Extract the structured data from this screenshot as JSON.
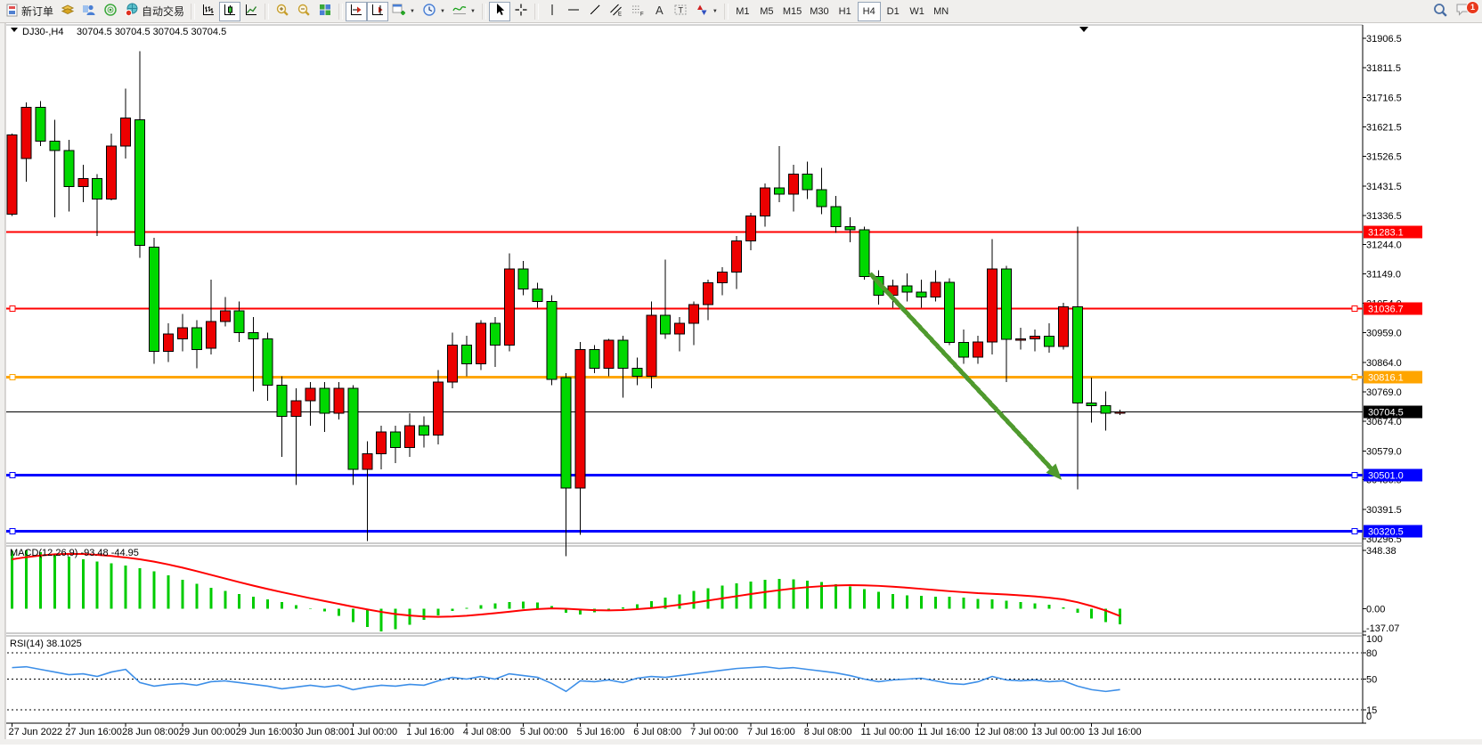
{
  "toolbar": {
    "new_order": "新订单",
    "auto_trading": "自动交易",
    "timeframes": [
      "M1",
      "M5",
      "M15",
      "M30",
      "H1",
      "H4",
      "D1",
      "W1",
      "MN"
    ],
    "active_timeframe": "H4",
    "notification_badge": "1"
  },
  "symbol_bar": {
    "title": "DJ30-,H4",
    "ohlc": "30704.5 30704.5 30704.5 30704.5"
  },
  "chart_data": {
    "type": "candlestick",
    "symbol": "DJ30-",
    "timeframe": "H4",
    "colors": {
      "up": "#ec0000",
      "down": "#00d800",
      "wick": "#000000",
      "macd_hist": "#00cc00",
      "macd_signal": "#ff0000",
      "rsi": "#3d8fe8",
      "arrow": "#4f9a2e",
      "red_line": "#ff0000",
      "orange_line": "#ffa500",
      "blue_line": "#0000ff"
    },
    "y_axis": {
      "max": 31906.5,
      "min": 30296.5
    },
    "y_ticks": [
      31906.5,
      31811.5,
      31716.5,
      31621.5,
      31526.5,
      31431.5,
      31336.5,
      31244.0,
      31149.0,
      31054.0,
      30959.0,
      30864.0,
      30769.0,
      30674.0,
      30579.0,
      30486.5,
      30391.5,
      30296.5
    ],
    "x_labels": [
      {
        "bar": 0,
        "label": "27 Jun 2022"
      },
      {
        "bar": 4,
        "label": "27 Jun 16:00"
      },
      {
        "bar": 8,
        "label": "28 Jun 08:00"
      },
      {
        "bar": 12,
        "label": "29 Jun 00:00"
      },
      {
        "bar": 16,
        "label": "29 Jun 16:00"
      },
      {
        "bar": 20,
        "label": "30 Jun 08:00"
      },
      {
        "bar": 24,
        "label": "1 Jul 00:00"
      },
      {
        "bar": 28,
        "label": "1 Jul 16:00"
      },
      {
        "bar": 32,
        "label": "4 Jul 08:00"
      },
      {
        "bar": 36,
        "label": "5 Jul 00:00"
      },
      {
        "bar": 40,
        "label": "5 Jul 16:00"
      },
      {
        "bar": 44,
        "label": "6 Jul 08:00"
      },
      {
        "bar": 48,
        "label": "7 Jul 00:00"
      },
      {
        "bar": 52,
        "label": "7 Jul 16:00"
      },
      {
        "bar": 56,
        "label": "8 Jul 08:00"
      },
      {
        "bar": 60,
        "label": "11 Jul 00:00"
      },
      {
        "bar": 64,
        "label": "11 Jul 16:00"
      },
      {
        "bar": 68,
        "label": "12 Jul 08:00"
      },
      {
        "bar": 72,
        "label": "13 Jul 00:00"
      },
      {
        "bar": 76,
        "label": "13 Jul 16:00"
      }
    ],
    "candles": [
      [
        31340,
        31600,
        31335,
        31595
      ],
      [
        31520,
        31700,
        31445,
        31685
      ],
      [
        31685,
        31705,
        31560,
        31575
      ],
      [
        31575,
        31645,
        31330,
        31545
      ],
      [
        31545,
        31580,
        31350,
        31430
      ],
      [
        31430,
        31500,
        31380,
        31455
      ],
      [
        31455,
        31470,
        31270,
        31390
      ],
      [
        31390,
        31600,
        31385,
        31560
      ],
      [
        31560,
        31745,
        31520,
        31650
      ],
      [
        31645,
        31865,
        31200,
        31240
      ],
      [
        31235,
        31265,
        30860,
        30900
      ],
      [
        30900,
        30990,
        30865,
        30955
      ],
      [
        30940,
        31020,
        30900,
        30975
      ],
      [
        30975,
        31000,
        30845,
        30905
      ],
      [
        30910,
        31130,
        30890,
        30995
      ],
      [
        30995,
        31075,
        30980,
        31030
      ],
      [
        31030,
        31060,
        30930,
        30960
      ],
      [
        30960,
        31010,
        30770,
        30940
      ],
      [
        30940,
        30960,
        30740,
        30790
      ],
      [
        30790,
        30820,
        30560,
        30690
      ],
      [
        30690,
        30780,
        30470,
        30740
      ],
      [
        30740,
        30800,
        30660,
        30780
      ],
      [
        30780,
        30800,
        30640,
        30700
      ],
      [
        30700,
        30800,
        30680,
        30780
      ],
      [
        30780,
        30790,
        30470,
        30520
      ],
      [
        30520,
        30610,
        30290,
        30570
      ],
      [
        30570,
        30660,
        30520,
        30640
      ],
      [
        30640,
        30660,
        30540,
        30590
      ],
      [
        30590,
        30700,
        30560,
        30660
      ],
      [
        30660,
        30690,
        30590,
        30630
      ],
      [
        30630,
        30840,
        30600,
        30800
      ],
      [
        30800,
        30960,
        30780,
        30920
      ],
      [
        30920,
        30950,
        30820,
        30860
      ],
      [
        30860,
        31000,
        30840,
        30990
      ],
      [
        30990,
        31010,
        30850,
        30920
      ],
      [
        30920,
        31215,
        30900,
        31165
      ],
      [
        31165,
        31190,
        31080,
        31100
      ],
      [
        31100,
        31120,
        31040,
        31060
      ],
      [
        31060,
        31080,
        30790,
        30810
      ],
      [
        30815,
        30830,
        30240,
        30460
      ],
      [
        30460,
        30930,
        30310,
        30905
      ],
      [
        30905,
        30920,
        30830,
        30845
      ],
      [
        30845,
        30940,
        30820,
        30935
      ],
      [
        30935,
        30950,
        30750,
        30845
      ],
      [
        30845,
        30880,
        30790,
        30820
      ],
      [
        30820,
        31060,
        30780,
        31015
      ],
      [
        31015,
        31195,
        30940,
        30955
      ],
      [
        30955,
        31010,
        30900,
        30990
      ],
      [
        30990,
        31060,
        30920,
        31050
      ],
      [
        31050,
        31130,
        31000,
        31120
      ],
      [
        31120,
        31170,
        31080,
        31155
      ],
      [
        31155,
        31270,
        31100,
        31255
      ],
      [
        31255,
        31345,
        31225,
        31335
      ],
      [
        31335,
        31440,
        31300,
        31425
      ],
      [
        31425,
        31560,
        31380,
        31405
      ],
      [
        31405,
        31500,
        31350,
        31470
      ],
      [
        31470,
        31510,
        31390,
        31420
      ],
      [
        31420,
        31490,
        31340,
        31365
      ],
      [
        31365,
        31400,
        31280,
        31300
      ],
      [
        31300,
        31330,
        31250,
        31290
      ],
      [
        31290,
        31300,
        31130,
        31140
      ],
      [
        31140,
        31160,
        31050,
        31080
      ],
      [
        31080,
        31130,
        31040,
        31110
      ],
      [
        31110,
        31150,
        31060,
        31090
      ],
      [
        31090,
        31130,
        31040,
        31075
      ],
      [
        31075,
        31160,
        31060,
        31122
      ],
      [
        31122,
        31135,
        30920,
        30928
      ],
      [
        30928,
        30970,
        30860,
        30881
      ],
      [
        30881,
        30950,
        30860,
        30930
      ],
      [
        30930,
        31261,
        30890,
        31165
      ],
      [
        31165,
        31175,
        30800,
        30938
      ],
      [
        30938,
        30975,
        30905,
        30940
      ],
      [
        30940,
        30970,
        30900,
        30948
      ],
      [
        30948,
        30990,
        30895,
        30915
      ],
      [
        30915,
        31055,
        30905,
        31043
      ],
      [
        31043,
        31300,
        30455,
        30733
      ],
      [
        30733,
        30815,
        30670,
        30725
      ],
      [
        30725,
        30770,
        30645,
        30700
      ],
      [
        30700,
        30712,
        30695,
        30704.5
      ]
    ],
    "hlines": [
      {
        "price": 31283.1,
        "label": "31283.1",
        "color": "#ff0000",
        "width": 2,
        "handles": false
      },
      {
        "price": 31036.7,
        "label": "31036.7",
        "color": "#ff0000",
        "width": 2,
        "handles": true
      },
      {
        "price": 30816.1,
        "label": "30816.1",
        "color": "#ffa500",
        "width": 3,
        "handles": true
      },
      {
        "price": 30704.5,
        "label": "30704.5",
        "color": "#000000",
        "width": 1,
        "handles": false
      },
      {
        "price": 30501.0,
        "label": "30501.0",
        "color": "#0000ff",
        "width": 3,
        "handles": true
      },
      {
        "price": 30320.5,
        "label": "30320.5",
        "color": "#0000ff",
        "width": 3,
        "handles": true
      }
    ],
    "current_price": 30704.5,
    "arrow": {
      "from": {
        "bar": 60.4,
        "price": 31150
      },
      "to": {
        "bar": 73.9,
        "price": 30486
      }
    },
    "macd": {
      "label": "MACD(12,26,9)",
      "values_text": "-93.48 -44.95",
      "range": [
        348.38,
        -137.07
      ],
      "axis": [
        {
          "v": 348.38,
          "t": "348.38"
        },
        {
          "v": 0,
          "t": "0.00"
        },
        {
          "v": -137.07,
          "t": "-137.07"
        }
      ],
      "histogram": [
        345,
        348.38,
        338,
        325,
        310,
        295,
        282,
        270,
        258,
        242,
        222,
        198,
        172,
        148,
        125,
        105,
        88,
        72,
        55,
        38,
        20,
        2,
        -18,
        -45,
        -80,
        -110,
        -137,
        -125,
        -98,
        -68,
        -40,
        -15,
        5,
        20,
        32,
        40,
        42,
        35,
        15,
        -25,
        -35,
        -22,
        -8,
        8,
        25,
        45,
        65,
        85,
        105,
        122,
        138,
        152,
        163,
        172,
        178,
        175,
        168,
        158,
        146,
        132,
        116,
        100,
        88,
        80,
        75,
        72,
        70,
        65,
        58,
        55,
        48,
        40,
        32,
        22,
        8,
        -25,
        -60,
        -82,
        -93.48
      ],
      "signal": [
        295,
        308,
        318,
        325,
        328,
        327,
        322,
        315,
        306,
        295,
        281,
        264,
        245,
        224,
        202,
        180,
        158,
        137,
        117,
        98,
        80,
        62,
        45,
        28,
        11,
        -5,
        -20,
        -33,
        -42,
        -48,
        -50,
        -48,
        -43,
        -36,
        -28,
        -19,
        -10,
        -3,
        1,
        -1,
        -6,
        -10,
        -11,
        -9,
        -4,
        3,
        12,
        23,
        35,
        48,
        61,
        74,
        87,
        99,
        110,
        120,
        128,
        134,
        138,
        140,
        139,
        136,
        131,
        125,
        118,
        111,
        104,
        98,
        92,
        88,
        84,
        79,
        73,
        65,
        55,
        38,
        15,
        -12,
        -44.95
      ]
    },
    "rsi": {
      "label": "RSI(14)",
      "value_text": "38.1025",
      "range": [
        100,
        0
      ],
      "levels": [
        80,
        50,
        15
      ],
      "axis": [
        {
          "v": 100,
          "t": "100"
        },
        {
          "v": 80,
          "t": "80"
        },
        {
          "v": 50,
          "t": "50"
        },
        {
          "v": 15,
          "t": "15"
        },
        {
          "v": 0,
          "t": "0"
        }
      ],
      "series": [
        63,
        64,
        61,
        58,
        55,
        56,
        53,
        58,
        61,
        46,
        42,
        44,
        45,
        43,
        47,
        48,
        46,
        44,
        42,
        39,
        41,
        43,
        41,
        43,
        38,
        41,
        43,
        42,
        44,
        43,
        48,
        52,
        50,
        53,
        50,
        56,
        54,
        52,
        45,
        36,
        48,
        47,
        49,
        46,
        51,
        53,
        52,
        54,
        56,
        58,
        60,
        62,
        63,
        64,
        62,
        63,
        61,
        59,
        57,
        54,
        50,
        47,
        49,
        50,
        51,
        48,
        45,
        44,
        47,
        53,
        49,
        48,
        49,
        47,
        48,
        42,
        38,
        36,
        38.1
      ]
    }
  }
}
